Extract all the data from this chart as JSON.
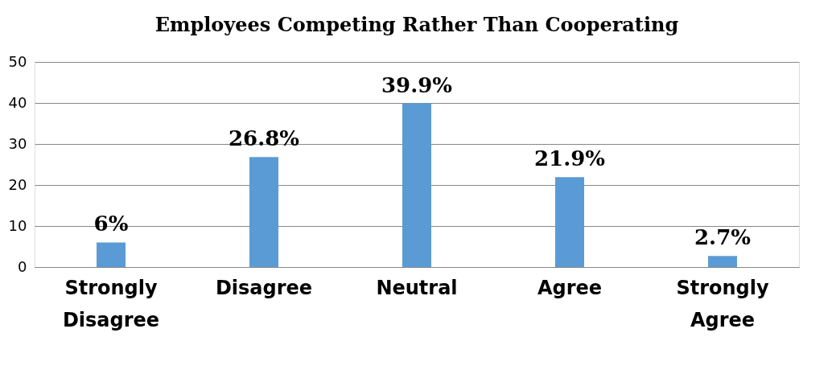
{
  "chart_data": {
    "type": "bar",
    "title": "Employees Competing Rather Than Cooperating",
    "categories": [
      "Strongly Disagree",
      "Disagree",
      "Neutral",
      "Agree",
      "Strongly Agree"
    ],
    "values": [
      6,
      26.8,
      39.9,
      21.9,
      2.7
    ],
    "value_labels": [
      "6%",
      "26.8%",
      "39.9%",
      "21.9%",
      "2.7%"
    ],
    "color": "#5b9bd5",
    "ylim": [
      0,
      50
    ],
    "yticks": [
      0,
      10,
      20,
      30,
      40,
      50
    ],
    "grid": "y"
  }
}
